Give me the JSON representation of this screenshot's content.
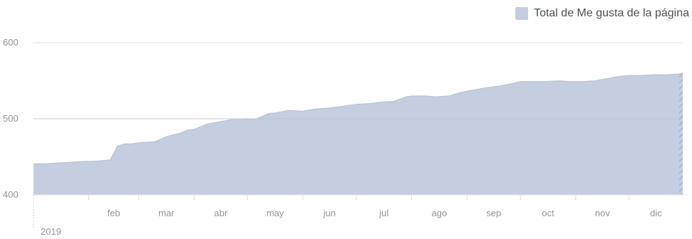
{
  "legend": {
    "label": "Total de Me gusta de la página"
  },
  "colors": {
    "area": "#c5cde0",
    "area_line": "#b4bfd8",
    "grid": "#e4e6eb",
    "axis": "#e4e6eb",
    "hatch": "#9aa5c0"
  },
  "chart_data": {
    "type": "area",
    "series": [
      {
        "name": "Total de Me gusta de la página",
        "x": [
          "2019-01-01",
          "2019-01-08",
          "2019-01-15",
          "2019-01-22",
          "2019-01-29",
          "2019-02-03",
          "2019-02-08",
          "2019-02-13",
          "2019-02-17",
          "2019-02-21",
          "2019-02-24",
          "2019-03-03",
          "2019-03-10",
          "2019-03-17",
          "2019-03-24",
          "2019-03-28",
          "2019-04-01",
          "2019-04-08",
          "2019-04-15",
          "2019-04-22",
          "2019-04-29",
          "2019-05-06",
          "2019-05-13",
          "2019-05-17",
          "2019-05-24",
          "2019-06-01",
          "2019-06-08",
          "2019-06-15",
          "2019-06-22",
          "2019-07-01",
          "2019-07-08",
          "2019-07-15",
          "2019-07-22",
          "2019-07-29",
          "2019-08-01",
          "2019-08-08",
          "2019-08-15",
          "2019-08-22",
          "2019-08-29",
          "2019-09-05",
          "2019-09-12",
          "2019-09-19",
          "2019-09-26",
          "2019-10-01",
          "2019-10-08",
          "2019-10-15",
          "2019-10-22",
          "2019-10-29",
          "2019-11-05",
          "2019-11-12",
          "2019-11-19",
          "2019-11-26",
          "2019-12-01",
          "2019-12-08",
          "2019-12-15",
          "2019-12-22",
          "2019-12-29",
          "2019-12-31"
        ],
        "values": [
          441,
          441,
          442,
          443,
          444,
          444,
          445,
          446,
          464,
          467,
          467,
          469,
          470,
          477,
          481,
          485,
          486,
          493,
          496,
          499,
          499,
          500,
          507,
          508,
          511,
          510,
          513,
          514,
          516,
          519,
          520,
          522,
          523,
          529,
          530,
          530,
          529,
          530,
          535,
          538,
          541,
          543,
          546,
          549,
          549,
          549,
          550,
          549,
          549,
          550,
          553,
          556,
          557,
          557,
          558,
          558,
          559,
          560
        ]
      }
    ],
    "x_ticks": [
      "feb",
      "mar",
      "abr",
      "may",
      "jun",
      "jul",
      "ago",
      "sep",
      "oct",
      "nov",
      "dic"
    ],
    "x_tick_dates": [
      "2019-02-01",
      "2019-03-01",
      "2019-04-01",
      "2019-05-01",
      "2019-06-01",
      "2019-07-01",
      "2019-08-01",
      "2019-09-01",
      "2019-10-01",
      "2019-11-01",
      "2019-12-01"
    ],
    "x_start_label": "2019",
    "xlim": [
      "2019-01-01",
      "2019-12-31"
    ],
    "y_ticks": [
      400,
      500,
      600
    ],
    "ylim": [
      400,
      600
    ],
    "title": "",
    "xlabel": "",
    "ylabel": "",
    "grid": true,
    "legend_position": "top-right"
  }
}
